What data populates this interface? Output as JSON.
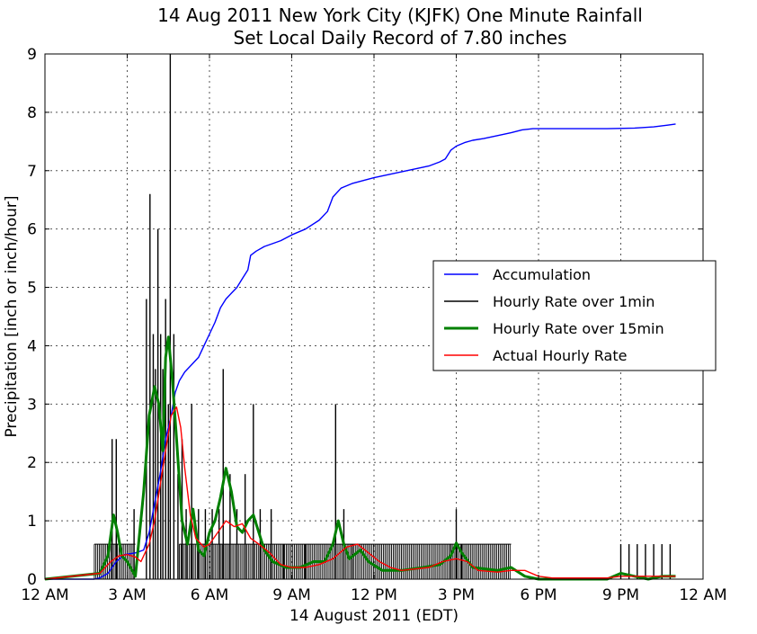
{
  "chart_data": {
    "type": "line",
    "title": "14 Aug 2011 New York City (KJFK) One Minute Rainfall",
    "subtitle": "Set Local Daily Record of 7.80 inches",
    "xlabel": "14 August 2011 (EDT)",
    "ylabel": "Precipitation [inch or inch/hour]",
    "x_units": "hours after midnight",
    "xlim": [
      0,
      24
    ],
    "ylim": [
      0,
      9
    ],
    "x_ticks": [
      0,
      3,
      6,
      9,
      12,
      15,
      18,
      21,
      24
    ],
    "x_tick_labels": [
      "12 AM",
      "3 AM",
      "6 AM",
      "9 AM",
      "12 PM",
      "3 PM",
      "6 PM",
      "9 PM",
      "12 AM"
    ],
    "y_ticks": [
      0,
      1,
      2,
      3,
      4,
      5,
      6,
      7,
      8,
      9
    ],
    "grid": true,
    "legend_position": "center-right",
    "series": [
      {
        "name": "Accumulation",
        "color": "#0000ff",
        "style": "line",
        "points": [
          [
            0,
            0
          ],
          [
            1.8,
            0
          ],
          [
            2.0,
            0.02
          ],
          [
            2.3,
            0.1
          ],
          [
            2.6,
            0.3
          ],
          [
            2.9,
            0.42
          ],
          [
            3.3,
            0.45
          ],
          [
            3.6,
            0.5
          ],
          [
            3.8,
            0.8
          ],
          [
            4.0,
            1.3
          ],
          [
            4.2,
            1.8
          ],
          [
            4.4,
            2.4
          ],
          [
            4.6,
            2.8
          ],
          [
            4.75,
            3.2
          ],
          [
            4.9,
            3.4
          ],
          [
            5.1,
            3.55
          ],
          [
            5.4,
            3.7
          ],
          [
            5.6,
            3.8
          ],
          [
            5.8,
            4.0
          ],
          [
            6.0,
            4.2
          ],
          [
            6.2,
            4.4
          ],
          [
            6.4,
            4.65
          ],
          [
            6.6,
            4.8
          ],
          [
            6.8,
            4.9
          ],
          [
            7.0,
            5.0
          ],
          [
            7.2,
            5.15
          ],
          [
            7.4,
            5.3
          ],
          [
            7.5,
            5.55
          ],
          [
            7.7,
            5.62
          ],
          [
            8.0,
            5.7
          ],
          [
            8.3,
            5.75
          ],
          [
            8.6,
            5.8
          ],
          [
            9.0,
            5.9
          ],
          [
            9.5,
            6.0
          ],
          [
            10.0,
            6.15
          ],
          [
            10.3,
            6.3
          ],
          [
            10.5,
            6.55
          ],
          [
            10.8,
            6.7
          ],
          [
            11.2,
            6.78
          ],
          [
            11.6,
            6.83
          ],
          [
            12.0,
            6.88
          ],
          [
            12.5,
            6.93
          ],
          [
            13.0,
            6.98
          ],
          [
            13.5,
            7.03
          ],
          [
            14.0,
            7.08
          ],
          [
            14.4,
            7.15
          ],
          [
            14.6,
            7.2
          ],
          [
            14.8,
            7.35
          ],
          [
            15.0,
            7.42
          ],
          [
            15.3,
            7.48
          ],
          [
            15.6,
            7.52
          ],
          [
            16.0,
            7.55
          ],
          [
            16.5,
            7.6
          ],
          [
            17.0,
            7.65
          ],
          [
            17.4,
            7.7
          ],
          [
            17.8,
            7.72
          ],
          [
            18.5,
            7.72
          ],
          [
            19.5,
            7.72
          ],
          [
            20.5,
            7.72
          ],
          [
            21.5,
            7.73
          ],
          [
            22.2,
            7.75
          ],
          [
            22.7,
            7.78
          ],
          [
            23.0,
            7.8
          ]
        ]
      },
      {
        "name": "Hourly Rate over 1min",
        "color": "#000000",
        "style": "spikes",
        "baseline": 0.6,
        "baseline_intervals": [
          [
            1.8,
            3.3
          ],
          [
            4.9,
            17.0
          ]
        ],
        "points": [
          [
            2.45,
            2.4
          ],
          [
            2.6,
            2.4
          ],
          [
            3.25,
            1.2
          ],
          [
            3.7,
            4.8
          ],
          [
            3.83,
            6.6
          ],
          [
            3.95,
            4.2
          ],
          [
            4.03,
            3.6
          ],
          [
            4.12,
            6.0
          ],
          [
            4.22,
            4.2
          ],
          [
            4.3,
            3.6
          ],
          [
            4.4,
            4.8
          ],
          [
            4.5,
            3.0
          ],
          [
            4.57,
            9.0
          ],
          [
            4.7,
            4.2
          ],
          [
            4.85,
            1.8
          ],
          [
            5.0,
            2.4
          ],
          [
            5.15,
            1.2
          ],
          [
            5.35,
            3.0
          ],
          [
            5.6,
            1.2
          ],
          [
            5.85,
            1.2
          ],
          [
            6.1,
            1.2
          ],
          [
            6.35,
            1.2
          ],
          [
            6.5,
            3.6
          ],
          [
            6.75,
            1.8
          ],
          [
            7.0,
            1.2
          ],
          [
            7.3,
            1.8
          ],
          [
            7.6,
            3.0
          ],
          [
            7.85,
            1.2
          ],
          [
            8.25,
            1.2
          ],
          [
            8.7,
            0.6
          ],
          [
            9.5,
            0.6
          ],
          [
            10.6,
            3.0
          ],
          [
            10.9,
            1.2
          ],
          [
            11.2,
            0.6
          ],
          [
            14.8,
            0.6
          ],
          [
            15.0,
            1.2
          ],
          [
            15.2,
            0.6
          ],
          [
            21.0,
            0.6
          ],
          [
            21.3,
            0.6
          ],
          [
            21.6,
            0.6
          ],
          [
            21.9,
            0.6
          ],
          [
            22.2,
            0.6
          ],
          [
            22.5,
            0.6
          ],
          [
            22.8,
            0.6
          ]
        ]
      },
      {
        "name": "Hourly Rate over 15min",
        "color": "#008000",
        "style": "thick-line",
        "points": [
          [
            0,
            0
          ],
          [
            2.0,
            0.1
          ],
          [
            2.3,
            0.4
          ],
          [
            2.5,
            1.1
          ],
          [
            2.65,
            0.8
          ],
          [
            2.8,
            0.4
          ],
          [
            3.0,
            0.3
          ],
          [
            3.3,
            0.05
          ],
          [
            3.6,
            1.5
          ],
          [
            3.8,
            2.8
          ],
          [
            4.0,
            3.3
          ],
          [
            4.15,
            3.0
          ],
          [
            4.3,
            2.2
          ],
          [
            4.4,
            3.8
          ],
          [
            4.5,
            4.15
          ],
          [
            4.65,
            3.4
          ],
          [
            4.8,
            2.4
          ],
          [
            5.0,
            1.0
          ],
          [
            5.2,
            0.6
          ],
          [
            5.4,
            1.2
          ],
          [
            5.6,
            0.5
          ],
          [
            5.8,
            0.4
          ],
          [
            6.0,
            0.8
          ],
          [
            6.2,
            1.0
          ],
          [
            6.4,
            1.4
          ],
          [
            6.6,
            1.9
          ],
          [
            6.8,
            1.5
          ],
          [
            7.0,
            0.9
          ],
          [
            7.2,
            0.8
          ],
          [
            7.4,
            1.0
          ],
          [
            7.6,
            1.1
          ],
          [
            7.8,
            0.8
          ],
          [
            8.0,
            0.5
          ],
          [
            8.3,
            0.3
          ],
          [
            8.8,
            0.2
          ],
          [
            9.3,
            0.2
          ],
          [
            9.8,
            0.3
          ],
          [
            10.2,
            0.3
          ],
          [
            10.5,
            0.6
          ],
          [
            10.7,
            1.0
          ],
          [
            10.9,
            0.6
          ],
          [
            11.1,
            0.35
          ],
          [
            11.5,
            0.5
          ],
          [
            11.8,
            0.3
          ],
          [
            12.3,
            0.15
          ],
          [
            13.0,
            0.15
          ],
          [
            13.8,
            0.2
          ],
          [
            14.4,
            0.25
          ],
          [
            14.8,
            0.4
          ],
          [
            15.0,
            0.62
          ],
          [
            15.2,
            0.45
          ],
          [
            15.6,
            0.2
          ],
          [
            16.5,
            0.15
          ],
          [
            17.0,
            0.2
          ],
          [
            17.5,
            0.05
          ],
          [
            18.0,
            0.0
          ],
          [
            20.5,
            0.0
          ],
          [
            21.0,
            0.1
          ],
          [
            21.5,
            0.05
          ],
          [
            22.0,
            0.0
          ],
          [
            22.5,
            0.05
          ],
          [
            23.0,
            0.05
          ]
        ]
      },
      {
        "name": "Actual Hourly Rate",
        "color": "#ff0000",
        "style": "line",
        "points": [
          [
            0,
            0
          ],
          [
            2.0,
            0.1
          ],
          [
            2.4,
            0.3
          ],
          [
            2.7,
            0.4
          ],
          [
            3.0,
            0.42
          ],
          [
            3.3,
            0.38
          ],
          [
            3.5,
            0.3
          ],
          [
            3.8,
            0.6
          ],
          [
            4.0,
            1.0
          ],
          [
            4.2,
            1.6
          ],
          [
            4.4,
            2.2
          ],
          [
            4.6,
            2.8
          ],
          [
            4.8,
            2.95
          ],
          [
            4.95,
            2.6
          ],
          [
            5.1,
            1.9
          ],
          [
            5.3,
            1.1
          ],
          [
            5.5,
            0.7
          ],
          [
            5.8,
            0.55
          ],
          [
            6.0,
            0.6
          ],
          [
            6.3,
            0.8
          ],
          [
            6.6,
            1.0
          ],
          [
            6.9,
            0.9
          ],
          [
            7.2,
            0.95
          ],
          [
            7.5,
            0.7
          ],
          [
            7.8,
            0.6
          ],
          [
            8.2,
            0.45
          ],
          [
            8.6,
            0.25
          ],
          [
            9.0,
            0.2
          ],
          [
            9.5,
            0.2
          ],
          [
            10.0,
            0.25
          ],
          [
            10.5,
            0.35
          ],
          [
            11.0,
            0.55
          ],
          [
            11.4,
            0.6
          ],
          [
            11.8,
            0.45
          ],
          [
            12.2,
            0.3
          ],
          [
            12.6,
            0.2
          ],
          [
            13.0,
            0.15
          ],
          [
            14.0,
            0.2
          ],
          [
            14.5,
            0.3
          ],
          [
            15.0,
            0.35
          ],
          [
            15.4,
            0.3
          ],
          [
            15.8,
            0.15
          ],
          [
            16.5,
            0.12
          ],
          [
            17.0,
            0.15
          ],
          [
            17.5,
            0.15
          ],
          [
            18.0,
            0.05
          ],
          [
            18.5,
            0.02
          ],
          [
            20.5,
            0.02
          ],
          [
            21.0,
            0.05
          ],
          [
            22.5,
            0.05
          ],
          [
            23.0,
            0.05
          ]
        ]
      }
    ]
  }
}
